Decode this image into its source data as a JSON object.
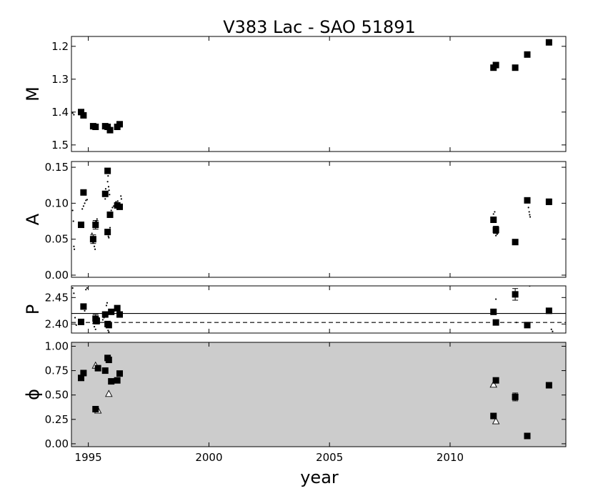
{
  "chart_data": {
    "type": "scatter",
    "title": "V383 Lac - SAO 51891",
    "xlabel": "year",
    "xlim": [
      1994.3,
      2014.8
    ],
    "xticks": [
      1995,
      2000,
      2005,
      2010
    ],
    "panels": [
      {
        "id": "M",
        "ylabel": "M",
        "ylim": [
          1.52,
          1.17
        ],
        "yticks": [
          1.2,
          1.3,
          1.4,
          1.5
        ],
        "ytick_labels": [
          "1.2",
          "1.3",
          "1.4",
          "1.5"
        ],
        "background": "#ffffff",
        "squares": [
          [
            1994.7,
            1.4
          ],
          [
            1994.8,
            1.41
          ],
          [
            1995.2,
            1.443
          ],
          [
            1995.3,
            1.445
          ],
          [
            1995.7,
            1.443
          ],
          [
            1995.8,
            1.445
          ],
          [
            1995.9,
            1.455
          ],
          [
            1996.2,
            1.445
          ],
          [
            1996.3,
            1.437
          ],
          [
            2011.8,
            1.265
          ],
          [
            2011.9,
            1.257
          ],
          [
            2012.7,
            1.265
          ],
          [
            2013.2,
            1.225
          ],
          [
            2014.1,
            1.188
          ]
        ],
        "errors": [],
        "dots": [
          [
            1994.35,
            1.403
          ],
          [
            1994.4,
            1.408
          ]
        ],
        "hlines": []
      },
      {
        "id": "A",
        "ylabel": "A",
        "ylim": [
          -0.003,
          0.158
        ],
        "yticks": [
          0.0,
          0.05,
          0.1,
          0.15
        ],
        "ytick_labels": [
          "0.00",
          "0.05",
          "0.10",
          "0.15"
        ],
        "background": "#ffffff",
        "squares": [
          [
            1994.7,
            0.07
          ],
          [
            1994.8,
            0.115
          ],
          [
            1995.2,
            0.05
          ],
          [
            1995.3,
            0.07
          ],
          [
            1995.7,
            0.113
          ],
          [
            1995.8,
            0.145
          ],
          [
            1995.8,
            0.06
          ],
          [
            1995.9,
            0.084
          ],
          [
            1996.2,
            0.097
          ],
          [
            1996.3,
            0.095
          ],
          [
            2011.8,
            0.077
          ],
          [
            2011.9,
            0.063
          ],
          [
            2012.7,
            0.046
          ],
          [
            2013.2,
            0.104
          ],
          [
            2014.1,
            0.102
          ]
        ],
        "errors": [
          [
            1995.2,
            0.05,
            0.006
          ],
          [
            1995.3,
            0.07,
            0.006
          ],
          [
            2011.9,
            0.063,
            0.005
          ],
          [
            2014.1,
            0.102,
            0.004
          ]
        ],
        "dots": [
          [
            1994.35,
            0.09
          ],
          [
            1994.38,
            0.075
          ],
          [
            1994.4,
            0.04
          ],
          [
            1994.42,
            0.036
          ],
          [
            1994.75,
            0.092
          ],
          [
            1994.8,
            0.096
          ],
          [
            1994.85,
            0.1
          ],
          [
            1994.9,
            0.104
          ],
          [
            1994.95,
            0.105
          ],
          [
            1995.15,
            0.058
          ],
          [
            1995.2,
            0.045
          ],
          [
            1995.25,
            0.04
          ],
          [
            1995.28,
            0.036
          ],
          [
            1995.33,
            0.075
          ],
          [
            1995.36,
            0.078
          ],
          [
            1995.7,
            0.106
          ],
          [
            1995.72,
            0.12
          ],
          [
            1995.8,
            0.13
          ],
          [
            1995.82,
            0.138
          ],
          [
            1995.84,
            0.123
          ],
          [
            1995.86,
            0.118
          ],
          [
            1995.88,
            0.112
          ],
          [
            1995.83,
            0.054
          ],
          [
            1995.85,
            0.052
          ],
          [
            1995.95,
            0.09
          ],
          [
            1996.0,
            0.094
          ],
          [
            1996.05,
            0.096
          ],
          [
            1995.9,
            0.066
          ],
          [
            1996.15,
            0.102
          ],
          [
            1996.22,
            0.103
          ],
          [
            1996.35,
            0.11
          ],
          [
            1996.37,
            0.106
          ],
          [
            2011.8,
            0.085
          ],
          [
            2011.85,
            0.088
          ],
          [
            2011.9,
            0.055
          ],
          [
            2011.95,
            0.057
          ],
          [
            2013.25,
            0.094
          ],
          [
            2013.28,
            0.088
          ],
          [
            2013.3,
            0.084
          ],
          [
            2013.32,
            0.081
          ]
        ],
        "hlines": []
      },
      {
        "id": "P",
        "ylabel": "P",
        "ylim": [
          2.383,
          2.472
        ],
        "yticks": [
          2.4,
          2.45
        ],
        "ytick_labels": [
          "2.40",
          "2.45"
        ],
        "background": "#ffffff",
        "squares": [
          [
            1994.7,
            2.404
          ],
          [
            1994.8,
            2.433
          ],
          [
            1995.3,
            2.41
          ],
          [
            1995.35,
            2.406
          ],
          [
            1995.7,
            2.418
          ],
          [
            1995.8,
            2.4
          ],
          [
            1995.85,
            2.398
          ],
          [
            1995.95,
            2.423
          ],
          [
            1996.2,
            2.43
          ],
          [
            1996.3,
            2.418
          ],
          [
            2011.8,
            2.423
          ],
          [
            2011.9,
            2.403
          ],
          [
            2012.7,
            2.456
          ],
          [
            2013.2,
            2.398
          ],
          [
            2014.1,
            2.425
          ]
        ],
        "errors": [
          [
            1995.3,
            2.41,
            0.008
          ],
          [
            1995.35,
            2.406,
            0.006
          ],
          [
            2012.7,
            2.456,
            0.011
          ]
        ],
        "dots": [
          [
            1994.35,
            2.468
          ],
          [
            1994.4,
            2.458
          ],
          [
            1994.45,
            2.412
          ],
          [
            1994.5,
            2.398
          ],
          [
            1994.9,
            2.465
          ],
          [
            1994.95,
            2.468
          ],
          [
            1994.85,
            2.425
          ],
          [
            1995.2,
            2.401
          ],
          [
            1995.25,
            2.395
          ],
          [
            1995.3,
            2.39
          ],
          [
            1995.6,
            2.408
          ],
          [
            1995.65,
            2.412
          ],
          [
            1995.75,
            2.435
          ],
          [
            1995.78,
            2.44
          ],
          [
            1995.82,
            2.388
          ],
          [
            1995.85,
            2.385
          ],
          [
            1996.05,
            2.42
          ],
          [
            1996.1,
            2.425
          ],
          [
            2011.9,
            2.447
          ],
          [
            2012.75,
            2.403
          ],
          [
            2013.3,
            2.472
          ],
          [
            2014.2,
            2.39
          ],
          [
            2014.25,
            2.386
          ]
        ],
        "hlines": [
          {
            "y": 2.42,
            "style": "solid"
          },
          {
            "y": 2.403,
            "style": "dashed"
          }
        ]
      },
      {
        "id": "phi",
        "ylabel": "ϕ",
        "ylim": [
          -0.03,
          1.04
        ],
        "yticks": [
          0.0,
          0.25,
          0.5,
          0.75,
          1.0
        ],
        "ytick_labels": [
          "0.00",
          "0.25",
          "0.50",
          "0.75",
          "1.00"
        ],
        "background": "#cccccc",
        "squares": [
          [
            1994.7,
            0.675
          ],
          [
            1994.8,
            0.725
          ],
          [
            1995.3,
            0.355
          ],
          [
            1995.4,
            0.775
          ],
          [
            1995.7,
            0.75
          ],
          [
            1995.8,
            0.88
          ],
          [
            1995.85,
            0.86
          ],
          [
            1995.95,
            0.64
          ],
          [
            1996.2,
            0.65
          ],
          [
            1996.3,
            0.72
          ],
          [
            2011.8,
            0.285
          ],
          [
            2011.9,
            0.65
          ],
          [
            2012.7,
            0.48
          ],
          [
            2013.2,
            0.08
          ],
          [
            2014.1,
            0.6
          ]
        ],
        "errors": [
          [
            2012.7,
            0.48,
            0.04
          ]
        ],
        "triangles": [
          [
            1995.3,
            0.8
          ],
          [
            1995.4,
            0.34
          ],
          [
            1995.85,
            0.51
          ],
          [
            2011.8,
            0.605
          ],
          [
            2011.9,
            0.23
          ]
        ],
        "dots": [],
        "hlines": []
      }
    ]
  }
}
